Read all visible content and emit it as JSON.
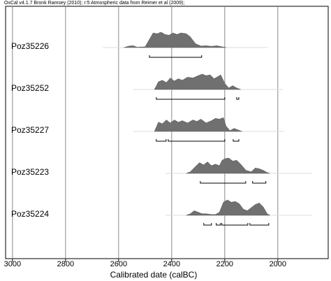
{
  "chart_data": {
    "type": "multiplot",
    "title": "OxCal v4.1.7 Bronk Ramsey (2010); r:5 Atmospheric data from Reimer et al (2009);",
    "x_label": "Calibrated date (calBC)",
    "xlim": [
      3026,
      1810
    ],
    "xticks": [
      3000,
      2800,
      2600,
      2400,
      2200,
      2000
    ],
    "grid": true,
    "color": "#707070",
    "series": [
      {
        "name": "Poz35226",
        "x": [
          2580,
          2560,
          2545,
          2530,
          2500,
          2485,
          2470,
          2455,
          2440,
          2425,
          2410,
          2395,
          2380,
          2365,
          2345,
          2330,
          2310,
          2290,
          2270,
          2250,
          2230,
          2210,
          2195
        ],
        "values": [
          0,
          0.1,
          0.12,
          0.02,
          0.05,
          0.5,
          0.95,
          0.9,
          1.0,
          0.85,
          0.8,
          0.95,
          0.85,
          0.95,
          0.9,
          0.7,
          0.25,
          0.1,
          0.12,
          0.08,
          0.12,
          0.05,
          0
        ],
        "ranges": [
          [
            2484,
            2287
          ]
        ]
      },
      {
        "name": "Poz35252",
        "x": [
          2465,
          2450,
          2435,
          2420,
          2405,
          2390,
          2375,
          2360,
          2340,
          2320,
          2300,
          2285,
          2270,
          2255,
          2240,
          2225,
          2215,
          2200,
          2185,
          2170,
          2155,
          2140
        ],
        "values": [
          0,
          0.5,
          0.6,
          0.45,
          0.75,
          0.55,
          0.7,
          0.6,
          0.8,
          0.75,
          0.9,
          1.0,
          0.9,
          0.95,
          0.7,
          0.85,
          0.95,
          0.4,
          0.1,
          0.25,
          0.1,
          0
        ],
        "ranges": [
          [
            2458,
            2200
          ],
          [
            2155,
            2147
          ]
        ]
      },
      {
        "name": "Poz35227",
        "x": [
          2465,
          2450,
          2435,
          2420,
          2405,
          2390,
          2375,
          2360,
          2340,
          2320,
          2305,
          2290,
          2270,
          2250,
          2235,
          2220,
          2205,
          2195,
          2180,
          2165,
          2150,
          2135
        ],
        "values": [
          0,
          0.6,
          0.5,
          0.75,
          0.55,
          0.75,
          0.6,
          0.7,
          0.55,
          0.75,
          0.65,
          0.8,
          0.55,
          0.7,
          0.85,
          0.8,
          0.9,
          0.35,
          0.05,
          0.2,
          0.1,
          0
        ],
        "ranges": [
          [
            2458,
            2421
          ],
          [
            2413,
            2200
          ],
          [
            2168,
            2147
          ]
        ]
      },
      {
        "name": "Poz35223",
        "x": [
          2345,
          2330,
          2310,
          2295,
          2280,
          2265,
          2250,
          2235,
          2220,
          2210,
          2200,
          2185,
          2170,
          2155,
          2140,
          2120,
          2100,
          2085,
          2070,
          2055,
          2040,
          2030
        ],
        "values": [
          0,
          0.1,
          0.45,
          0.7,
          0.55,
          0.75,
          0.5,
          0.6,
          0.5,
          0.85,
          0.95,
          1.0,
          0.8,
          0.85,
          0.6,
          0.2,
          0.1,
          0.35,
          0.3,
          0.2,
          0.05,
          0
        ],
        "ranges": [
          [
            2292,
            2121
          ],
          [
            2095,
            2045
          ]
        ]
      },
      {
        "name": "Poz35224",
        "x": [
          2345,
          2330,
          2315,
          2300,
          2285,
          2270,
          2250,
          2235,
          2220,
          2205,
          2190,
          2175,
          2160,
          2145,
          2130,
          2115,
          2100,
          2085,
          2070,
          2055,
          2040,
          2030
        ],
        "values": [
          0,
          0.1,
          0.3,
          0.2,
          0.1,
          0.1,
          0.05,
          0.05,
          0.2,
          0.85,
          1.0,
          0.85,
          0.9,
          0.75,
          0.4,
          0.3,
          0.5,
          0.7,
          0.8,
          0.55,
          0.1,
          0
        ],
        "ranges": [
          [
            2279,
            2250
          ],
          [
            2232,
            2216
          ],
          [
            2211,
            2113
          ],
          [
            2105,
            2034
          ]
        ]
      }
    ]
  }
}
